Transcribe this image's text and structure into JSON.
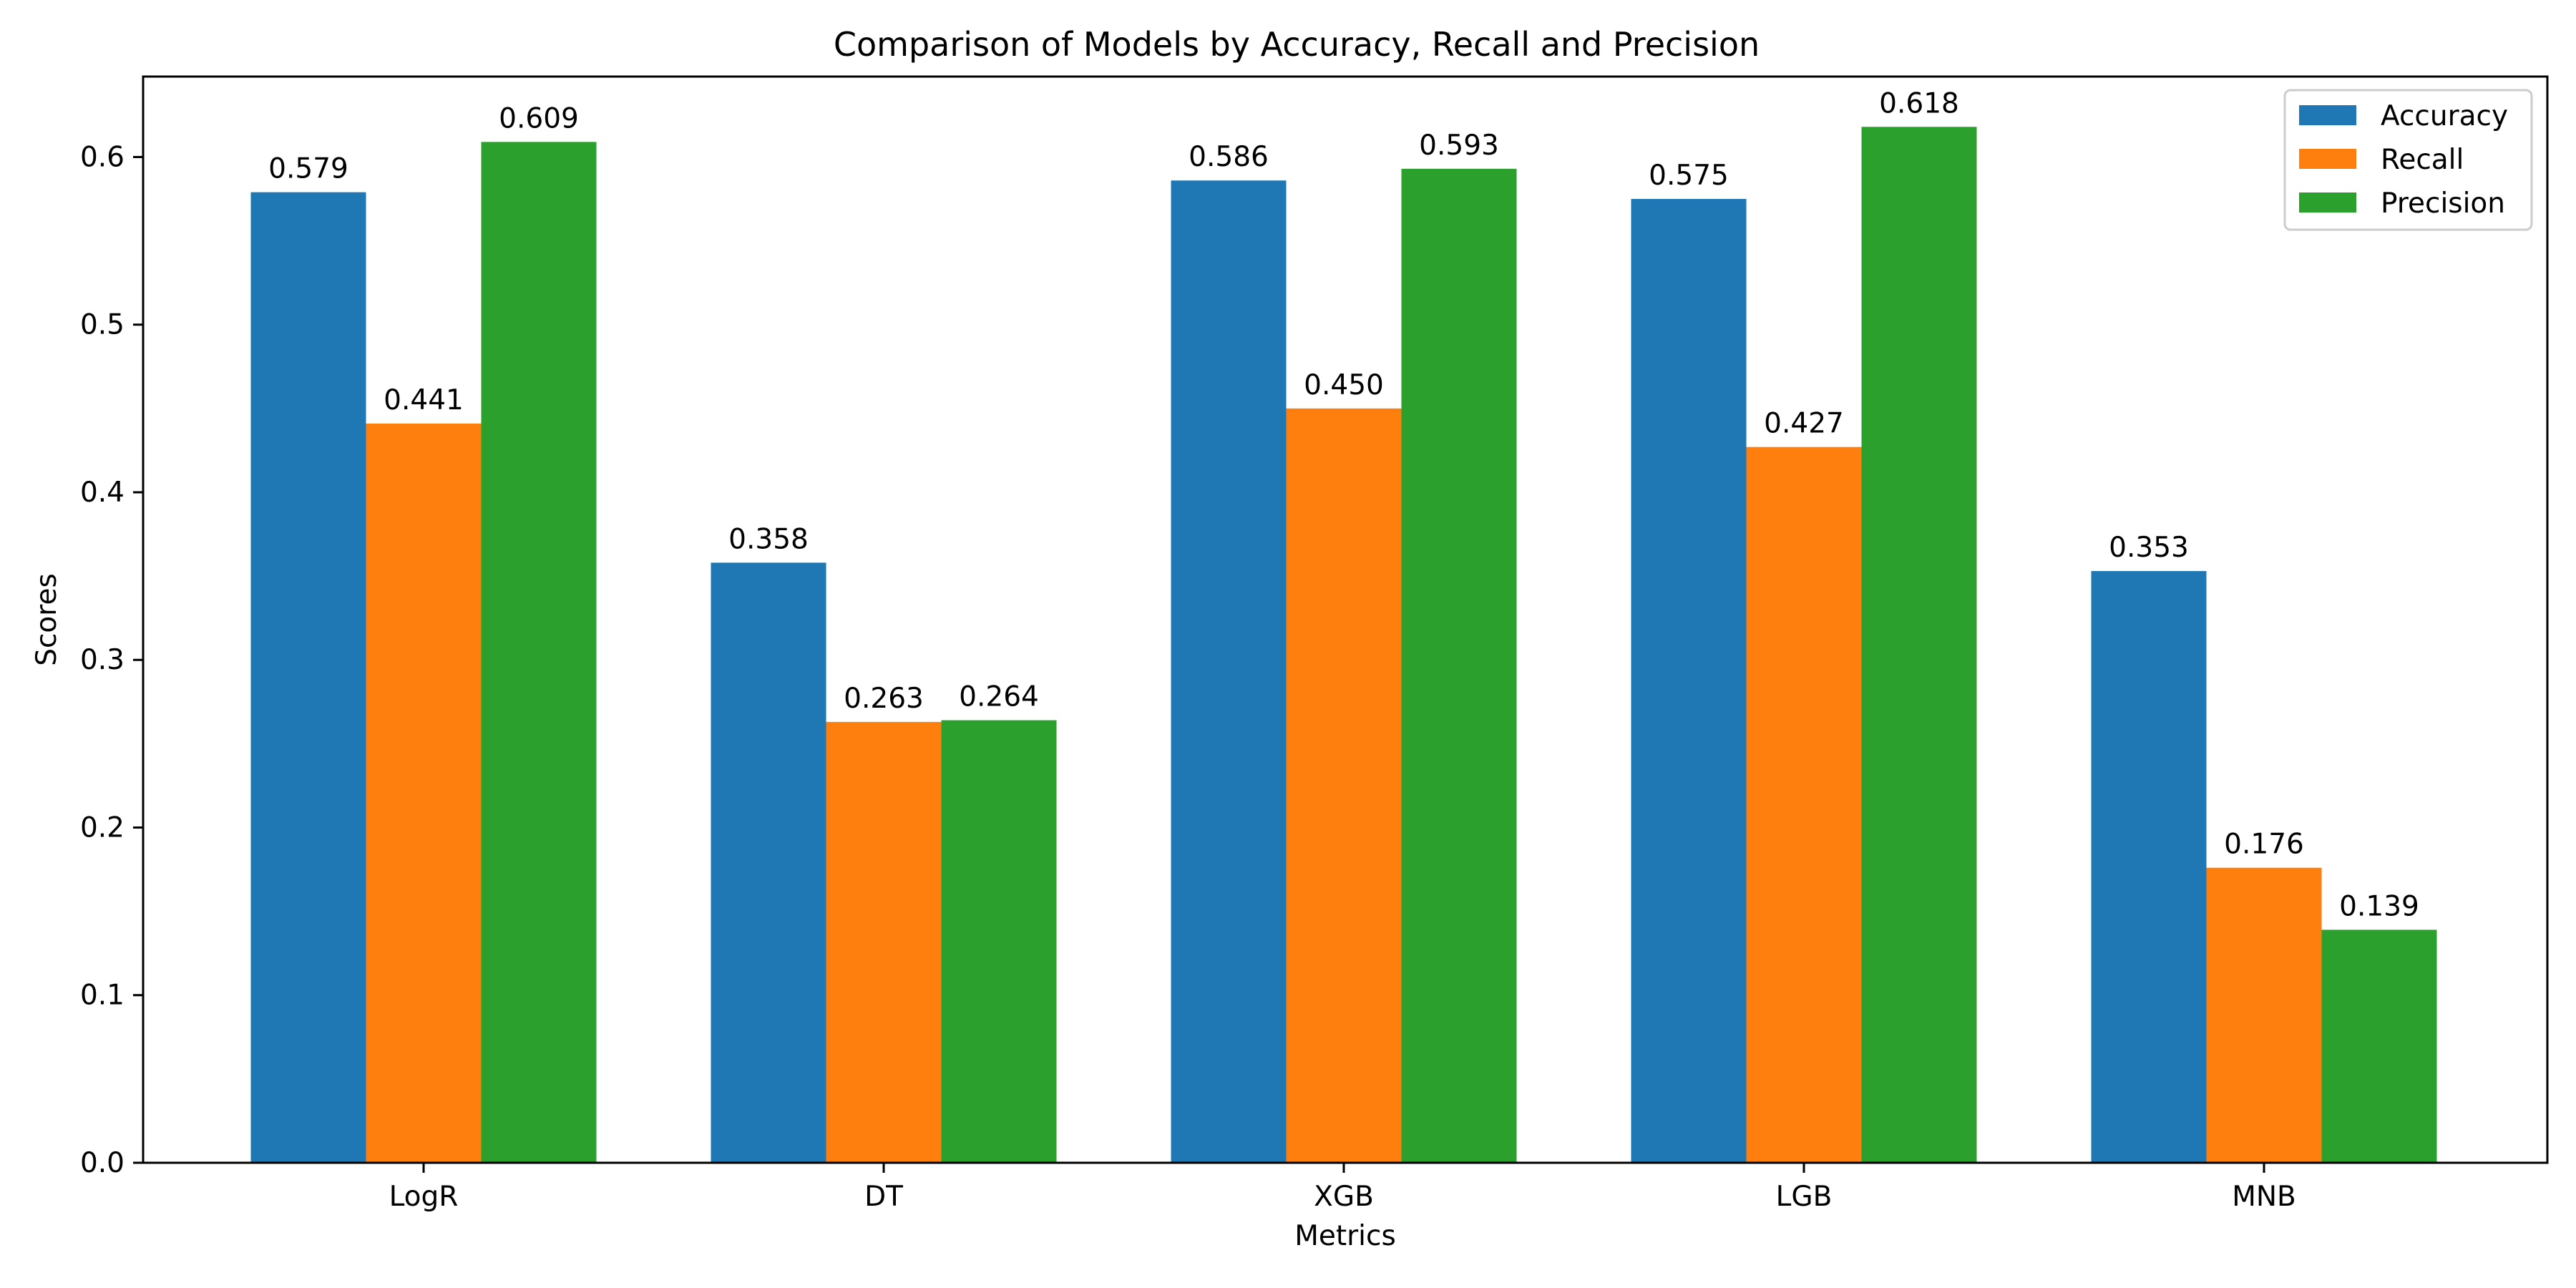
{
  "chart_data": {
    "type": "bar",
    "title": "Comparison of Models by Accuracy, Recall and Precision",
    "xlabel": "Metrics",
    "ylabel": "Scores",
    "categories": [
      "LogR",
      "DT",
      "XGB",
      "LGB",
      "MNB"
    ],
    "series": [
      {
        "name": "Accuracy",
        "color": "#1f77b4",
        "values": [
          0.579,
          0.358,
          0.586,
          0.575,
          0.353
        ]
      },
      {
        "name": "Recall",
        "color": "#ff7f0e",
        "values": [
          0.441,
          0.263,
          0.45,
          0.427,
          0.176
        ]
      },
      {
        "name": "Precision",
        "color": "#2ca02c",
        "values": [
          0.609,
          0.264,
          0.593,
          0.618,
          0.139
        ]
      }
    ],
    "ylim": [
      0,
      0.648
    ],
    "yticks": [
      0.0,
      0.1,
      0.2,
      0.3,
      0.4,
      0.5,
      0.6
    ],
    "ytick_labels": [
      "0.0",
      "0.1",
      "0.2",
      "0.3",
      "0.4",
      "0.5",
      "0.6"
    ],
    "grid": false,
    "legend": {
      "placement": "top-right"
    },
    "data_labels": {
      "LogR": [
        "0.579",
        "0.441",
        "0.609"
      ],
      "DT": [
        "0.358",
        "0.263",
        "0.264"
      ],
      "XGB": [
        "0.586",
        "0.450",
        "0.593"
      ],
      "LGB": [
        "0.575",
        "0.427",
        "0.618"
      ],
      "MNB": [
        "0.353",
        "0.176",
        "0.139"
      ]
    }
  }
}
